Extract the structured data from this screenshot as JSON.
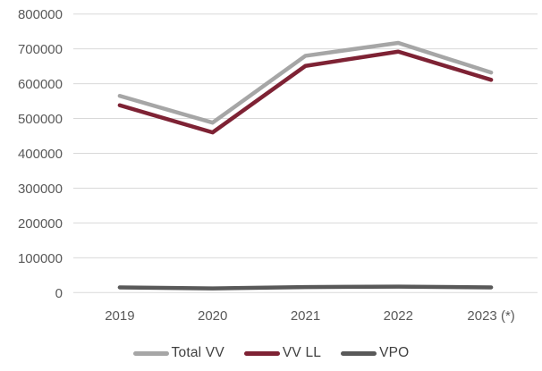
{
  "chart_data": {
    "type": "line",
    "title": "",
    "xlabel": "",
    "ylabel": "",
    "categories": [
      "2019",
      "2020",
      "2021",
      "2022",
      "2023 (*)"
    ],
    "series": [
      {
        "name": "Total VV",
        "color": "#A6A6A6",
        "values": [
          565000,
          488000,
          680000,
          717000,
          632000
        ]
      },
      {
        "name": "VV LL",
        "color": "#7E2234",
        "values": [
          538000,
          460000,
          651000,
          692000,
          611000
        ]
      },
      {
        "name": "VPO",
        "color": "#595959",
        "values": [
          15000,
          12000,
          16000,
          17000,
          15000
        ]
      }
    ],
    "ylim": [
      0,
      800000
    ],
    "y_ticks": [
      0,
      100000,
      200000,
      300000,
      400000,
      500000,
      600000,
      700000,
      800000
    ],
    "grid": true,
    "legend_position": "bottom"
  },
  "style": {
    "grid_color": "#D9D9D9",
    "tick_text_color": "#595959",
    "legend_text_color": "#404040",
    "background": "#FFFFFF",
    "line_width": 4.5
  }
}
